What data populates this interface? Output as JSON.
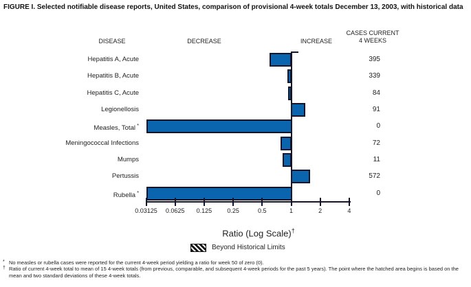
{
  "title": "FIGURE I. Selected notifiable disease reports, United States, comparison of provisional 4-week totals December 13, 2003, with historical data",
  "columns": {
    "disease": "DISEASE",
    "decrease": "DECREASE",
    "increase": "INCREASE",
    "cases_line1": "CASES CURRENT",
    "cases_line2": "4 WEEKS"
  },
  "chart_data": {
    "type": "bar",
    "orientation": "horizontal",
    "scale": "log2",
    "xlabel": "Ratio (Log Scale)",
    "xlabel_superscript": "†",
    "xlim": [
      0.03125,
      4
    ],
    "baseline_ratio": 1,
    "tick_labels": [
      "0.03125",
      "0.0625",
      "0.125",
      "0.25",
      "0.5",
      "1",
      "2",
      "4"
    ],
    "tick_values": [
      0.03125,
      0.0625,
      0.125,
      0.25,
      0.5,
      1,
      2,
      4
    ],
    "bar_color": "#0a64ae",
    "bar_border_color": "#15152a",
    "rows": [
      {
        "disease": "Hepatitis A, Acute",
        "marker": "",
        "ratio": 0.6,
        "cases": 395
      },
      {
        "disease": "Hepatitis B, Acute",
        "marker": "",
        "ratio": 0.92,
        "cases": 339
      },
      {
        "disease": "Hepatitis C, Acute",
        "marker": "",
        "ratio": 0.93,
        "cases": 84
      },
      {
        "disease": "Legionellosis",
        "marker": "",
        "ratio": 1.41,
        "cases": 91
      },
      {
        "disease": "Measles, Total",
        "marker": "*",
        "ratio": 0,
        "cases": 0
      },
      {
        "disease": "Meningococcal Infections",
        "marker": "",
        "ratio": 0.77,
        "cases": 72
      },
      {
        "disease": "Mumps",
        "marker": "",
        "ratio": 0.81,
        "cases": 11
      },
      {
        "disease": "Pertussis",
        "marker": "",
        "ratio": 1.58,
        "cases": 572
      },
      {
        "disease": "Rubella",
        "marker": "*",
        "ratio": 0,
        "cases": 0
      }
    ],
    "legend": {
      "label": "Beyond Historical Limits",
      "swatch": "hatched-black"
    }
  },
  "footnotes": [
    {
      "marker": "*",
      "text": "No measles or rubella cases were reported for the current 4-week period yielding a ratio for week 50 of zero (0)."
    },
    {
      "marker": "†",
      "text": "Ratio of current 4-week total to mean of 15 4-week totals (from previous, comparable, and subsequent 4-week periods for the past 5 years). The point where the hatched area begins is based on the mean and two standard deviations of these 4-week totals."
    }
  ]
}
